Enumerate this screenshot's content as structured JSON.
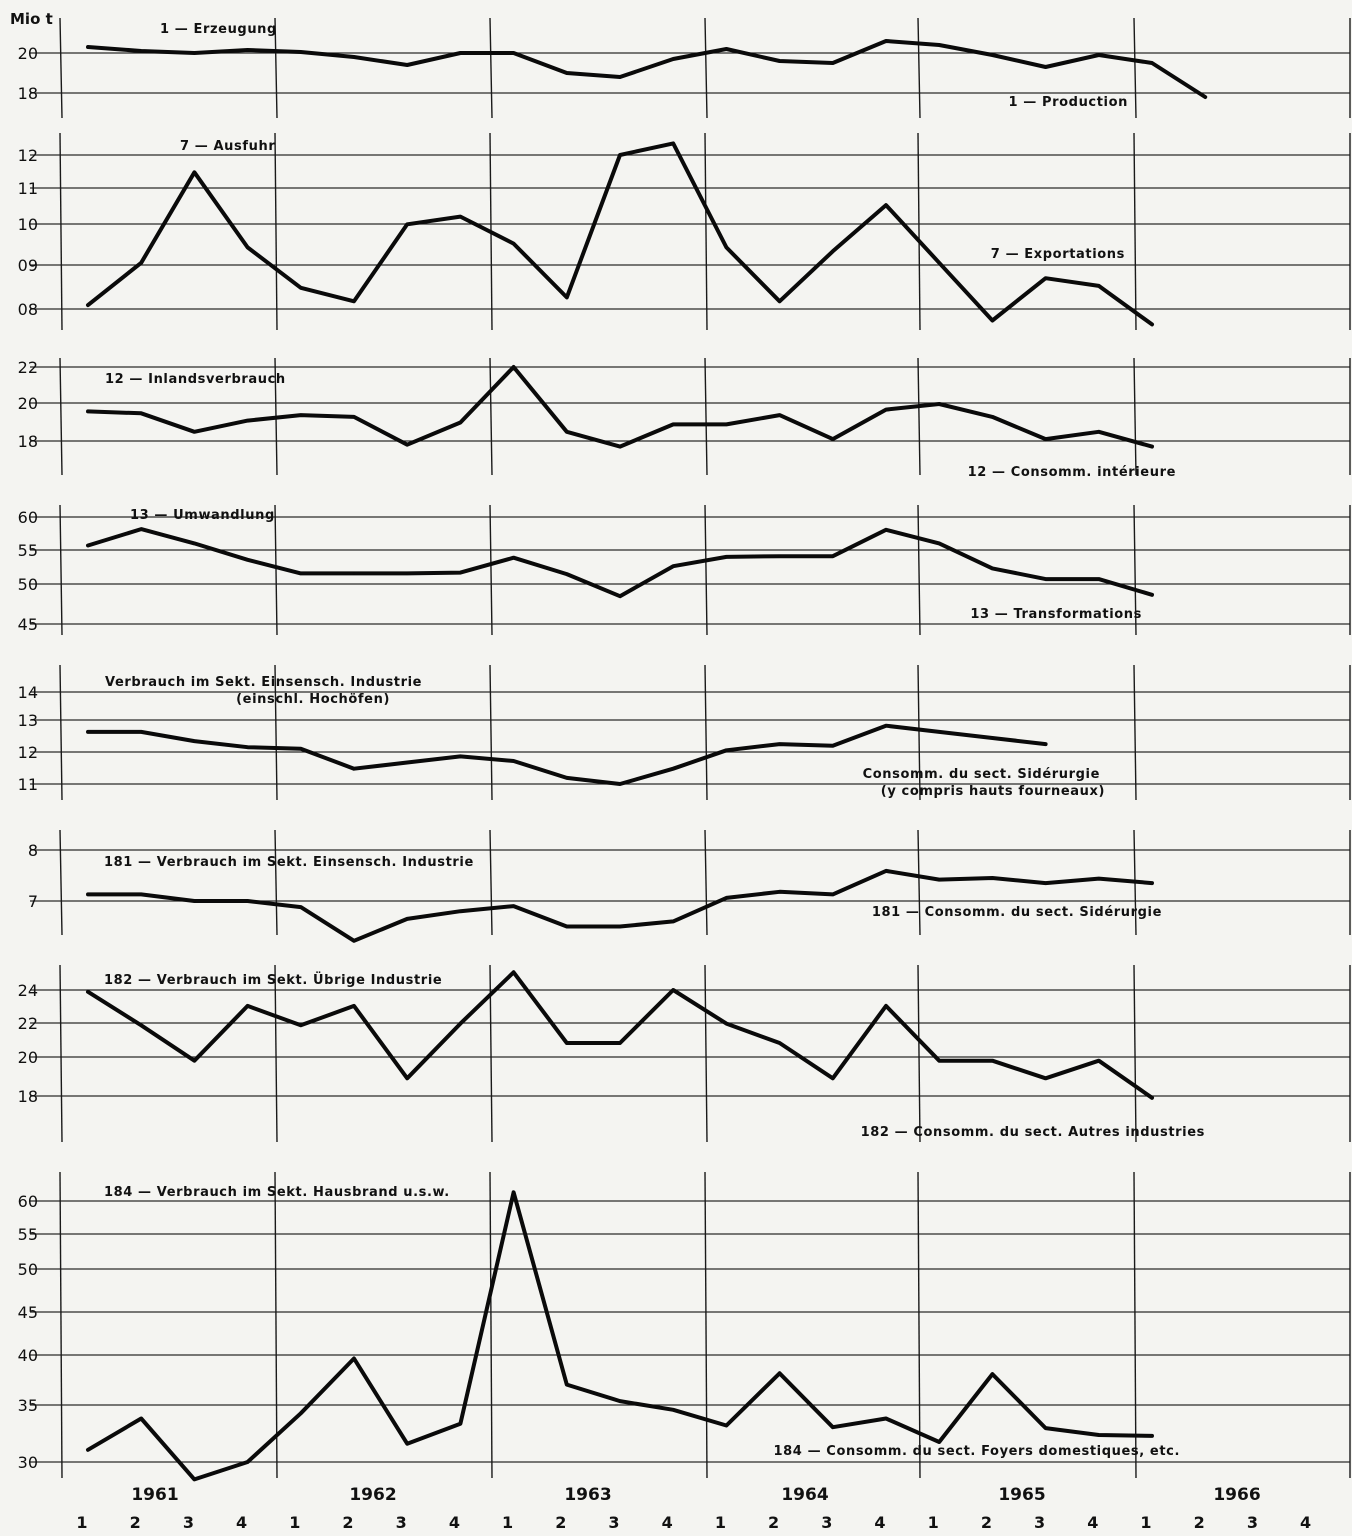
{
  "unit_label": "Mio t",
  "axis": {
    "years": [
      "1961",
      "1962",
      "1963",
      "1964",
      "1965",
      "1966"
    ],
    "quarters": [
      "1",
      "2",
      "3",
      "4",
      "1",
      "2",
      "3",
      "4",
      "1",
      "2",
      "3",
      "4",
      "1",
      "2",
      "3",
      "4",
      "1",
      "2",
      "3",
      "4",
      "1",
      "2",
      "3",
      "4"
    ]
  },
  "chart_data": [
    {
      "type": "line",
      "title_left": "1 — Erzeugung",
      "title_right": "1 — Production",
      "y_ticks": [
        "20",
        "18"
      ],
      "ylim": [
        17,
        22
      ],
      "series": [
        {
          "values": [
            20.3,
            20.1,
            20.0,
            20.15,
            20.05,
            19.8,
            19.4,
            20.0,
            20.0,
            19.0,
            18.8,
            19.7,
            20.2,
            19.6,
            19.5,
            20.6,
            20.4,
            19.9,
            19.3,
            19.9,
            19.5,
            17.8
          ]
        }
      ]
    },
    {
      "type": "line",
      "title_left": "7 — Ausfuhr",
      "title_right": "7 — Exportations",
      "y_ticks": [
        "12",
        "11",
        "10",
        "09",
        "08"
      ],
      "ylim": [
        7.6,
        12.4
      ],
      "series": [
        {
          "values": [
            8.1,
            9.2,
            11.55,
            9.6,
            8.55,
            8.2,
            10.2,
            10.4,
            9.7,
            8.3,
            12.0,
            12.3,
            9.6,
            8.2,
            9.5,
            10.7,
            9.2,
            7.7,
            8.8,
            8.6,
            7.6
          ]
        }
      ]
    },
    {
      "type": "line",
      "title_left": "12 — Inlandsverbrauch",
      "title_right": "12 — Consomm. intérieure",
      "y_ticks": [
        "22",
        "20",
        "18"
      ],
      "ylim": [
        16.8,
        23.5
      ],
      "series": [
        {
          "values": [
            19.6,
            19.5,
            18.5,
            19.1,
            19.4,
            19.3,
            17.8,
            19.0,
            22.0,
            18.5,
            17.7,
            18.9,
            18.9,
            19.4,
            18.1,
            19.7,
            20.0,
            19.3,
            18.1,
            18.5,
            17.7
          ]
        }
      ]
    },
    {
      "type": "line",
      "title_left": "13 — Umwandlung",
      "title_right": "13 — Transformations",
      "y_ticks": [
        "60",
        "55",
        "50",
        "45"
      ],
      "ylim": [
        44,
        62
      ],
      "series": [
        {
          "values": [
            56.0,
            58.3,
            56.3,
            54.0,
            52.1,
            52.1,
            52.1,
            52.2,
            54.3,
            52.0,
            48.9,
            53.1,
            54.4,
            54.5,
            54.5,
            58.2,
            56.3,
            52.8,
            51.3,
            51.3,
            49.1
          ]
        }
      ]
    },
    {
      "type": "line",
      "title_left": [
        "Verbrauch im Sekt. Einsensch. Industrie",
        "(einschl. Hochöfen)"
      ],
      "title_right": [
        "Consomm. du sect. Sidérurgie",
        "(y compris hauts fourneaux)"
      ],
      "y_ticks": [
        "14",
        "13",
        "12",
        "11"
      ],
      "ylim": [
        10.6,
        14.4
      ],
      "series": [
        {
          "values": [
            12.7,
            12.7,
            12.4,
            12.2,
            12.15,
            11.5,
            11.7,
            11.9,
            11.75,
            11.2,
            11.0,
            11.5,
            12.1,
            12.3,
            12.25,
            12.9,
            12.7,
            12.5,
            12.3
          ]
        }
      ]
    },
    {
      "type": "line",
      "title_left": "181 — Verbrauch im Sekt. Einsensch. Industrie",
      "title_right": "181 — Consomm. du sect. Sidérurgie",
      "y_ticks": [
        "8",
        "7"
      ],
      "ylim": [
        6.3,
        8.3
      ],
      "series": [
        {
          "values": [
            7.13,
            7.13,
            7.0,
            7.0,
            6.88,
            6.22,
            6.65,
            6.8,
            6.9,
            6.5,
            6.5,
            6.6,
            7.06,
            7.18,
            7.13,
            7.59,
            7.42,
            7.45,
            7.35,
            7.44,
            7.35
          ]
        }
      ]
    },
    {
      "type": "line",
      "title_left": "182 — Verbrauch im Sekt. Übrige Industrie",
      "title_right": "182 — Consomm. du sect. Autres industries",
      "y_ticks": [
        "24",
        "22",
        "20",
        "18"
      ],
      "ylim": [
        16.5,
        25.5
      ],
      "series": [
        {
          "values": [
            23.9,
            22.0,
            20.0,
            23.1,
            22.0,
            23.1,
            19.0,
            22.1,
            25.0,
            21.0,
            21.0,
            24.0,
            22.1,
            21.0,
            19.0,
            23.1,
            20.0,
            20.0,
            19.0,
            20.0,
            17.9
          ]
        }
      ]
    },
    {
      "type": "line",
      "title_left": "184 — Verbrauch im Sekt. Hausbrand u.s.w.",
      "title_right": "184 — Consomm. du sect. Foyers domestiques, etc.",
      "y_ticks": [
        "60",
        "55",
        "50",
        "45",
        "40",
        "35",
        "30"
      ],
      "ylim": [
        29,
        63
      ],
      "series": [
        {
          "values": [
            31.4,
            35.0,
            28.0,
            30.0,
            35.6,
            41.9,
            32.1,
            34.4,
            61.0,
            38.9,
            37.0,
            36.0,
            34.2,
            40.2,
            34.0,
            35.0,
            32.3,
            40.1,
            33.9,
            33.1,
            33.0
          ]
        }
      ]
    }
  ]
}
